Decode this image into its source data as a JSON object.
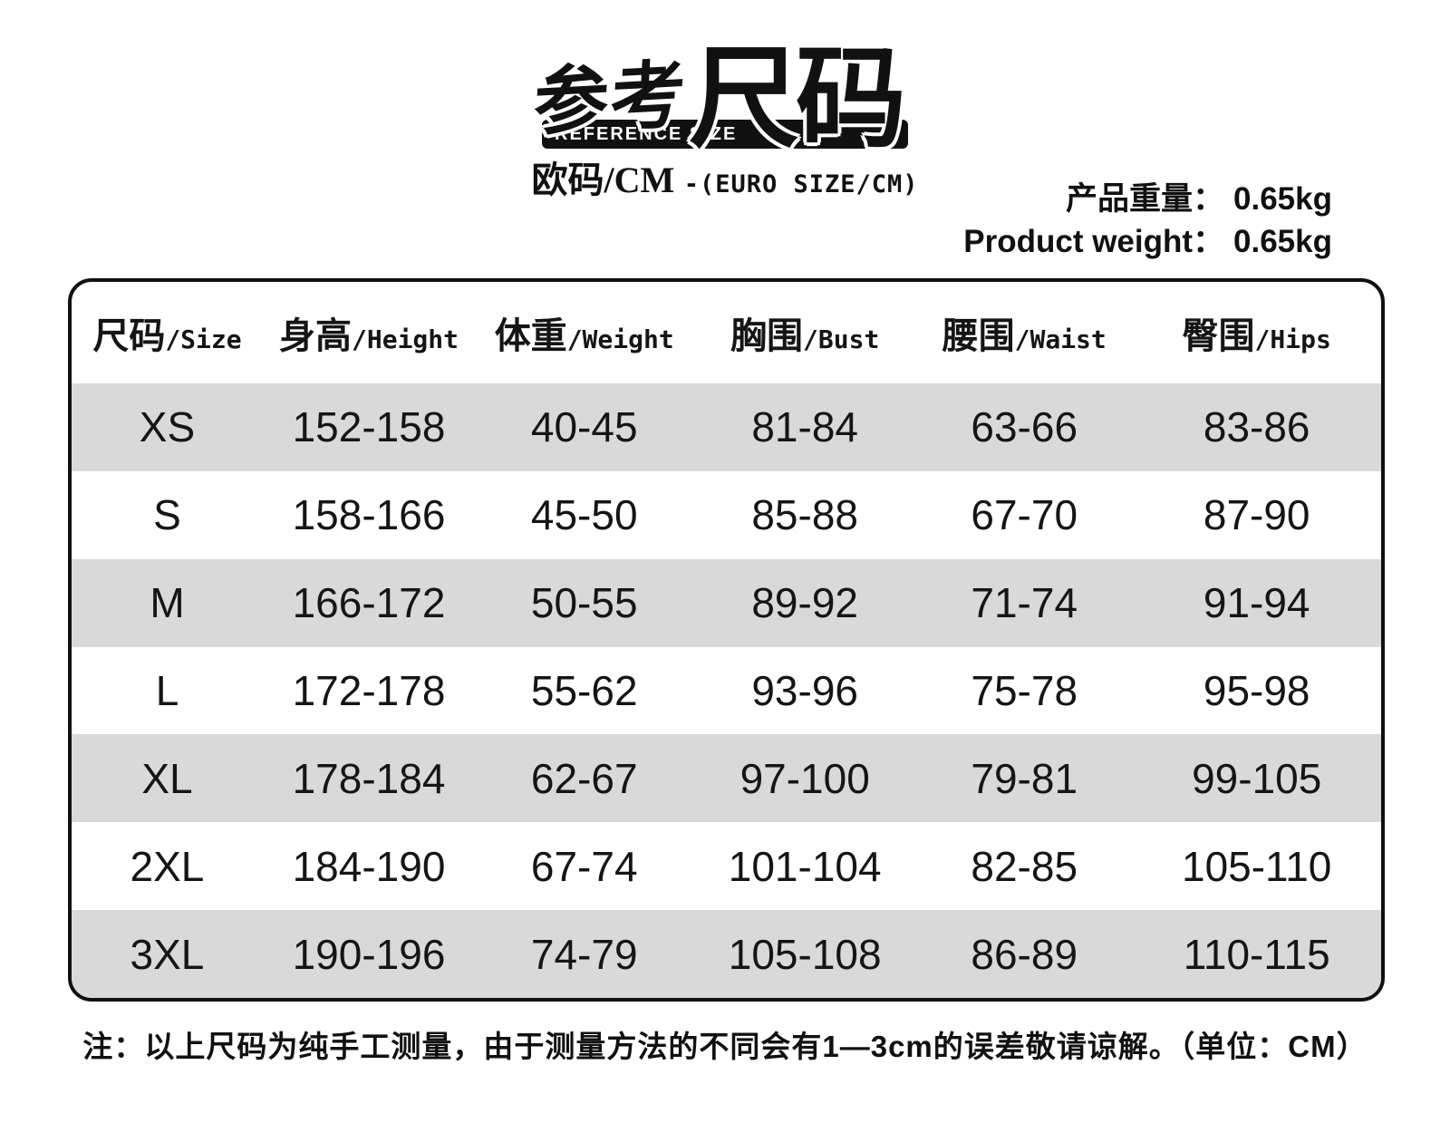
{
  "logo": {
    "title_part1": "参考",
    "title_part2": "尺码",
    "banner_en": "REFERENCE SIZE",
    "subtitle_cn": "欧码/CM",
    "subtitle_en": "-(EURO SIZE/CM)"
  },
  "weight": {
    "label_cn": "产品重量：",
    "value_cn": "0.65kg",
    "label_en": "Product weight：",
    "value_en": "0.65kg"
  },
  "table": {
    "columns": [
      {
        "cn": "尺码",
        "en": "/Size"
      },
      {
        "cn": "身高",
        "en": "/Height"
      },
      {
        "cn": "体重",
        "en": "/Weight"
      },
      {
        "cn": "胸围",
        "en": "/Bust"
      },
      {
        "cn": "腰围",
        "en": "/Waist"
      },
      {
        "cn": "臀围",
        "en": "/Hips"
      }
    ],
    "rows": [
      [
        "XS",
        "152-158",
        "40-45",
        "81-84",
        "63-66",
        "83-86"
      ],
      [
        "S",
        "158-166",
        "45-50",
        "85-88",
        "67-70",
        "87-90"
      ],
      [
        "M",
        "166-172",
        "50-55",
        "89-92",
        "71-74",
        "91-94"
      ],
      [
        "L",
        "172-178",
        "55-62",
        "93-96",
        "75-78",
        "95-98"
      ],
      [
        "XL",
        "178-184",
        "62-67",
        "97-100",
        "79-81",
        "99-105"
      ],
      [
        "2XL",
        "184-190",
        "67-74",
        "101-104",
        "82-85",
        "105-110"
      ],
      [
        "3XL",
        "190-196",
        "74-79",
        "105-108",
        "86-89",
        "110-115"
      ]
    ]
  },
  "note": "注：以上尺码为纯手工测量，由于测量方法的不同会有1—3cm的误差敬请谅解。（单位：CM）",
  "colors": {
    "ink": "#111111",
    "stripe": "#d9d9d9",
    "background": "#ffffff"
  }
}
